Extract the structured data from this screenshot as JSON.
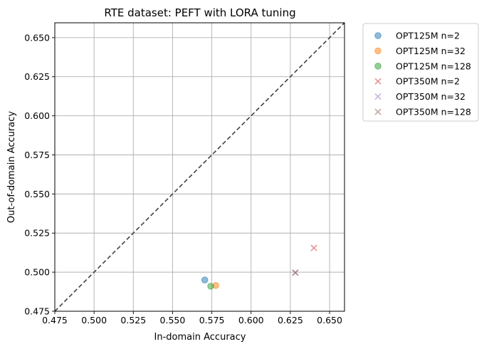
{
  "chart_data": {
    "type": "scatter",
    "title": "RTE dataset: PEFT with LORA tuning",
    "xlabel": "In-domain Accuracy",
    "ylabel": "Out-of-domain Accuracy",
    "xlim": [
      0.475,
      0.6595
    ],
    "ylim": [
      0.475,
      0.6595
    ],
    "xticks": [
      "0.475",
      "0.500",
      "0.525",
      "0.550",
      "0.575",
      "0.600",
      "0.625",
      "0.650"
    ],
    "yticks": [
      "0.475",
      "0.500",
      "0.525",
      "0.550",
      "0.575",
      "0.600",
      "0.625",
      "0.650"
    ],
    "grid": true,
    "legend_position": "outside-top-right",
    "diagonal": {
      "style": "dashed",
      "color": "#404040"
    },
    "series": [
      {
        "name": "OPT125M n=2",
        "marker": "circle",
        "color": "#1f77b4",
        "points": [
          [
            0.5705,
            0.495
          ]
        ]
      },
      {
        "name": "OPT125M n=32",
        "marker": "circle",
        "color": "#ff7f0e",
        "points": [
          [
            0.5775,
            0.4915
          ]
        ]
      },
      {
        "name": "OPT125M n=128",
        "marker": "circle",
        "color": "#2ca02c",
        "points": [
          [
            0.5743,
            0.491
          ]
        ]
      },
      {
        "name": "OPT350M n=2",
        "marker": "x",
        "color": "#d62728",
        "points": [
          [
            0.64,
            0.5155
          ]
        ]
      },
      {
        "name": "OPT350M n=32",
        "marker": "x",
        "color": "#9467bd",
        "points": [
          [
            0.628,
            0.4997
          ]
        ]
      },
      {
        "name": "OPT350M n=128",
        "marker": "x",
        "color": "#8c564b",
        "points": [
          [
            0.6283,
            0.4997
          ]
        ]
      }
    ]
  }
}
